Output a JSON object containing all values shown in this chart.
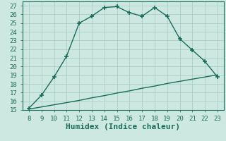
{
  "xlabel": "Humidex (Indice chaleur)",
  "bg_color": "#cce8e0",
  "line_color": "#1a6b5a",
  "grid_color": "#aacfc8",
  "x_main": [
    8,
    9,
    10,
    11,
    12,
    13,
    14,
    15,
    16,
    17,
    18,
    19,
    20,
    21,
    22,
    23
  ],
  "y_main": [
    15.2,
    16.7,
    18.8,
    21.2,
    25.0,
    25.8,
    26.8,
    26.9,
    26.2,
    25.8,
    26.8,
    25.8,
    23.2,
    21.9,
    20.6,
    18.8
  ],
  "x_line2": [
    8,
    9,
    10,
    11,
    12,
    13,
    14,
    15,
    16,
    17,
    18,
    19,
    20,
    21,
    22,
    23
  ],
  "y_line2": [
    15.1,
    15.35,
    15.6,
    15.85,
    16.1,
    16.4,
    16.65,
    16.95,
    17.2,
    17.5,
    17.75,
    18.05,
    18.3,
    18.55,
    18.8,
    19.05
  ],
  "xlim": [
    7.5,
    23.5
  ],
  "ylim": [
    15,
    27.5
  ],
  "xticks": [
    8,
    9,
    10,
    11,
    12,
    13,
    14,
    15,
    16,
    17,
    18,
    19,
    20,
    21,
    22,
    23
  ],
  "yticks": [
    15,
    16,
    17,
    18,
    19,
    20,
    21,
    22,
    23,
    24,
    25,
    26,
    27
  ],
  "marker": "+",
  "marker_size": 4.0,
  "linewidth": 1.0,
  "tick_fontsize": 6.5,
  "xlabel_fontsize": 8.0
}
